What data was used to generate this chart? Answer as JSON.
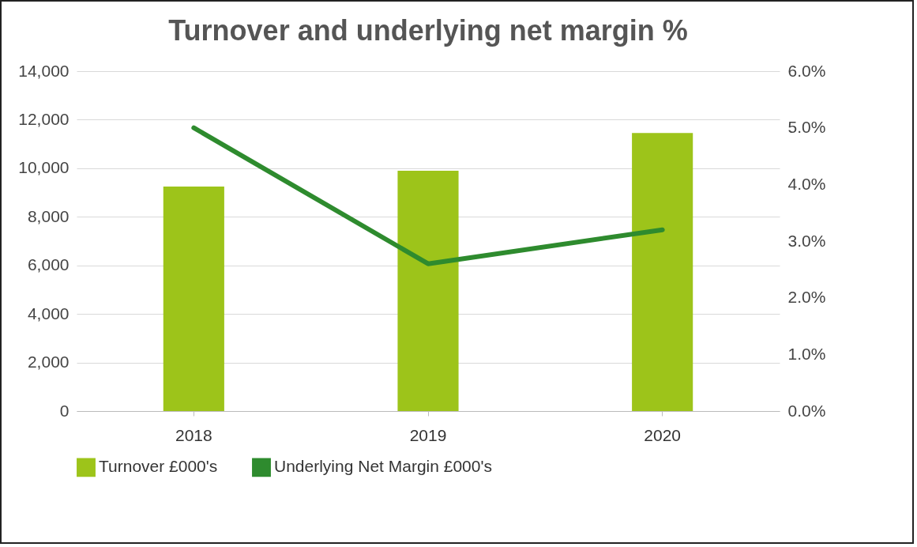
{
  "chart_data": {
    "type": "bar",
    "title": "Turnover and underlying net margin %",
    "categories": [
      "2018",
      "2019",
      "2020"
    ],
    "series": [
      {
        "name": "Turnover £000's",
        "color": "#9dc41a",
        "values": [
          9250,
          9900,
          11450
        ]
      },
      {
        "name": "Underlying Net Margin £000's",
        "type": "line",
        "axis": "y2",
        "color": "#2e8b2e",
        "values": [
          5.0,
          2.6,
          3.2
        ]
      }
    ],
    "ylim": [
      0,
      14000
    ],
    "yticks": [
      0,
      {
        "value": 2000,
        "label": "2,000"
      },
      {
        "value": 4000,
        "label": "4,000"
      },
      {
        "value": 6000,
        "label": "6,000"
      },
      {
        "value": 8000,
        "label": "8,000"
      },
      {
        "value": 10000,
        "label": "10,000"
      },
      {
        "value": 12000,
        "label": "12,000"
      },
      {
        "value": 14000,
        "label": "14,000"
      }
    ],
    "y2lim": [
      0,
      6
    ],
    "y2ticks": [
      {
        "value": 0,
        "label": "0.0%"
      },
      {
        "value": 1,
        "label": "1.0%"
      },
      {
        "value": 2,
        "label": "2.0%"
      },
      {
        "value": 3,
        "label": "3.0%"
      },
      {
        "value": 4,
        "label": "4.0%"
      },
      {
        "value": 5,
        "label": "5.0%"
      },
      {
        "value": 6,
        "label": "6.0%"
      }
    ],
    "grid": "y",
    "legend": "bottom"
  }
}
